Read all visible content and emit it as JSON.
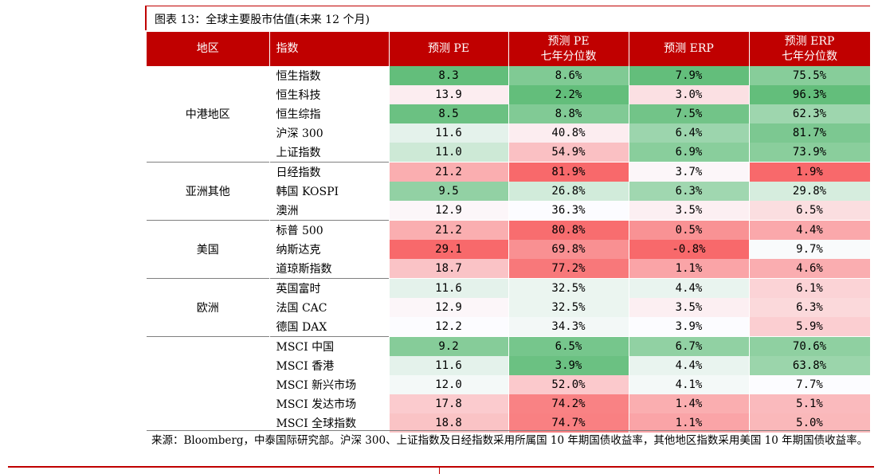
{
  "title": "图表 13：全球主要股市估值(未来 12 个月)",
  "headers": {
    "region": "地区",
    "index": "指数",
    "pe": "预测 PE",
    "pe_pct_line1": "预测 PE",
    "pe_pct_line2": "七年分位数",
    "erp": "预测 ERP",
    "erp_pct_line1": "预测 ERP",
    "erp_pct_line2": "七年分位数"
  },
  "groups": [
    {
      "region": "中港地区",
      "rows": [
        {
          "index": "恒生指数",
          "pe": "8.3",
          "pe_pct": "8.6%",
          "erp": "7.9%",
          "erp_pct": "75.5%"
        },
        {
          "index": "恒生科技",
          "pe": "13.9",
          "pe_pct": "2.2%",
          "erp": "3.0%",
          "erp_pct": "96.3%"
        },
        {
          "index": "恒生综指",
          "pe": "8.5",
          "pe_pct": "8.8%",
          "erp": "7.5%",
          "erp_pct": "62.3%"
        },
        {
          "index": "沪深 300",
          "pe": "11.6",
          "pe_pct": "40.8%",
          "erp": "6.4%",
          "erp_pct": "81.7%"
        },
        {
          "index": "上证指数",
          "pe": "11.0",
          "pe_pct": "54.9%",
          "erp": "6.9%",
          "erp_pct": "73.9%"
        }
      ]
    },
    {
      "region": "亚洲其他",
      "rows": [
        {
          "index": "日经指数",
          "pe": "21.2",
          "pe_pct": "81.9%",
          "erp": "3.7%",
          "erp_pct": "1.9%"
        },
        {
          "index": "韩国 KOSPI",
          "pe": "9.5",
          "pe_pct": "26.8%",
          "erp": "6.3%",
          "erp_pct": "29.8%"
        },
        {
          "index": "澳洲",
          "pe": "12.9",
          "pe_pct": "36.3%",
          "erp": "3.5%",
          "erp_pct": "6.5%"
        }
      ]
    },
    {
      "region": "美国",
      "rows": [
        {
          "index": "标普 500",
          "pe": "21.2",
          "pe_pct": "80.8%",
          "erp": "0.5%",
          "erp_pct": "4.4%"
        },
        {
          "index": "纳斯达克",
          "pe": "29.1",
          "pe_pct": "69.8%",
          "erp": "-0.8%",
          "erp_pct": "9.7%"
        },
        {
          "index": "道琼斯指数",
          "pe": "18.7",
          "pe_pct": "77.2%",
          "erp": "1.1%",
          "erp_pct": "4.6%"
        }
      ]
    },
    {
      "region": "欧洲",
      "rows": [
        {
          "index": "英国富时",
          "pe": "11.6",
          "pe_pct": "32.5%",
          "erp": "4.4%",
          "erp_pct": "6.1%"
        },
        {
          "index": "法国 CAC",
          "pe": "12.9",
          "pe_pct": "32.5%",
          "erp": "3.5%",
          "erp_pct": "6.3%"
        },
        {
          "index": "德国 DAX",
          "pe": "12.2",
          "pe_pct": "34.3%",
          "erp": "3.9%",
          "erp_pct": "5.9%"
        }
      ]
    },
    {
      "region": "",
      "rows": [
        {
          "index": "MSCI 中国",
          "pe": "9.2",
          "pe_pct": "6.5%",
          "erp": "6.7%",
          "erp_pct": "70.6%"
        },
        {
          "index": "MSCI 香港",
          "pe": "11.6",
          "pe_pct": "3.9%",
          "erp": "4.4%",
          "erp_pct": "63.8%"
        },
        {
          "index": "MSCI 新兴市场",
          "pe": "12.0",
          "pe_pct": "52.0%",
          "erp": "4.1%",
          "erp_pct": "7.7%"
        },
        {
          "index": "MSCI 发达市场",
          "pe": "17.8",
          "pe_pct": "74.2%",
          "erp": "1.4%",
          "erp_pct": "5.1%"
        },
        {
          "index": "MSCI 全球指数",
          "pe": "18.8",
          "pe_pct": "74.7%",
          "erp": "1.1%",
          "erp_pct": "5.0%"
        }
      ]
    }
  ],
  "source_note": "来源：Bloomberg，中泰国际研究部。沪深 300、上证指数及日经指数采用所属国 10 年期国债收益率，其他地区指数采用美国 10 年期国债收益率。",
  "colors": {
    "header_red": "#c00000",
    "green_strong": "#63be7b",
    "neutral": "#fcfcff",
    "red_strong": "#f8696b"
  }
}
